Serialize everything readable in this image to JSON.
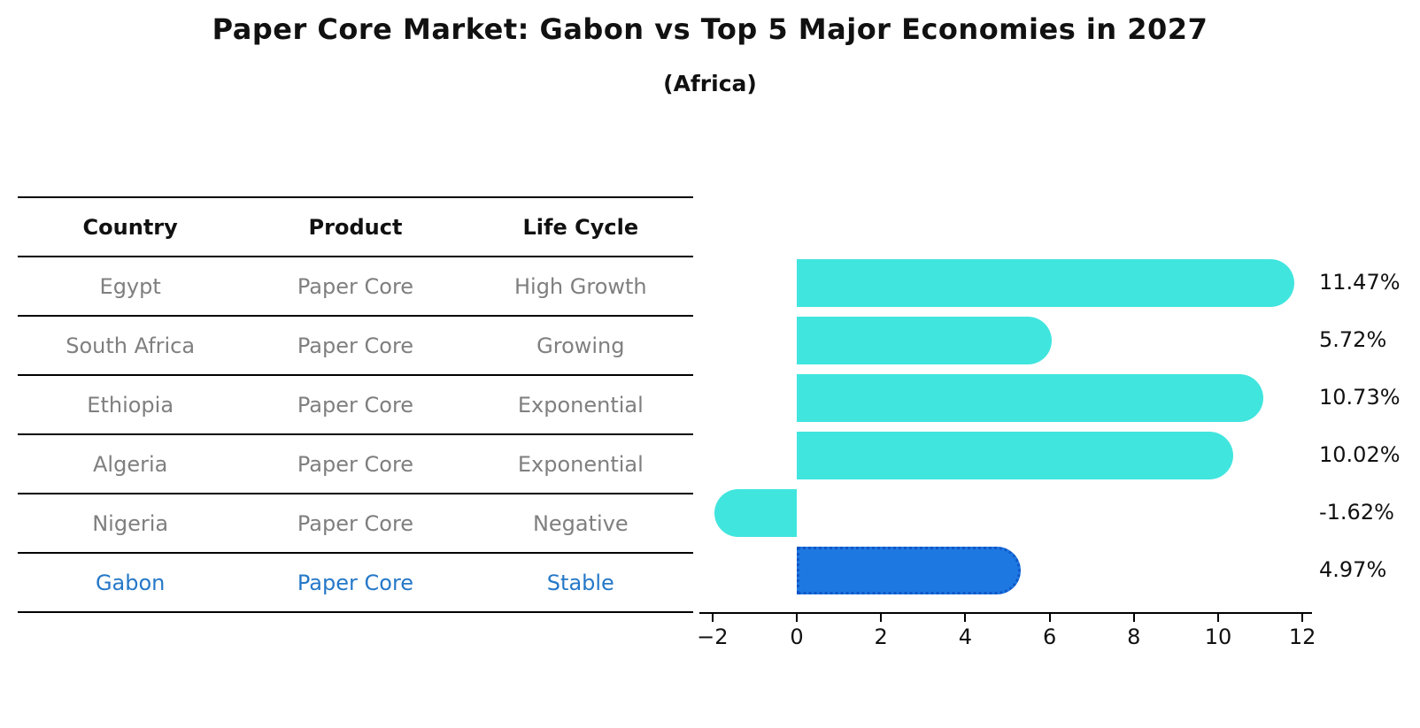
{
  "title": "Paper Core Market: Gabon vs Top 5 Major Economies in 2027",
  "subtitle": "(Africa)",
  "table": {
    "headers": [
      "Country",
      "Product",
      "Life Cycle"
    ],
    "rows": [
      {
        "country": "Egypt",
        "product": "Paper Core",
        "life_cycle": "High Growth",
        "highlight": false
      },
      {
        "country": "South Africa",
        "product": "Paper Core",
        "life_cycle": "Growing",
        "highlight": false
      },
      {
        "country": "Ethiopia",
        "product": "Paper Core",
        "life_cycle": "Exponential",
        "highlight": false
      },
      {
        "country": "Algeria",
        "product": "Paper Core",
        "life_cycle": "Exponential",
        "highlight": false
      },
      {
        "country": "Nigeria",
        "product": "Paper Core",
        "life_cycle": "Negative",
        "highlight": false
      },
      {
        "country": "Gabon",
        "product": "Paper Core",
        "life_cycle": "Stable",
        "highlight": true
      }
    ]
  },
  "chart_data": {
    "type": "bar",
    "orientation": "horizontal",
    "title": "Paper Core Market: Gabon vs Top 5 Major Economies in 2027 (Africa)",
    "categories": [
      "Egypt",
      "South Africa",
      "Ethiopia",
      "Algeria",
      "Nigeria",
      "Gabon"
    ],
    "values": [
      11.47,
      5.72,
      10.73,
      10.02,
      -1.62,
      4.97
    ],
    "value_labels": [
      "11.47%",
      "5.72%",
      "10.73%",
      "10.02%",
      "-1.62%",
      "4.97%"
    ],
    "unit": "percent",
    "xlim": [
      -2,
      12
    ],
    "xtick_values": [
      -2,
      0,
      2,
      4,
      6,
      8,
      10,
      12
    ],
    "xtick_labels": [
      "−2",
      "0",
      "2",
      "4",
      "6",
      "8",
      "10",
      "12"
    ],
    "grid": false,
    "legend": "none",
    "highlight_index": 5,
    "bar_color": "#40E5DE",
    "highlight_fill": "#1E78E1",
    "highlight_border": "#1057C8"
  },
  "colors": {
    "text_primary": "#111111",
    "text_muted": "#7f7f7f",
    "highlight_text": "#2578C8",
    "line": "#000000",
    "background": "#ffffff"
  }
}
